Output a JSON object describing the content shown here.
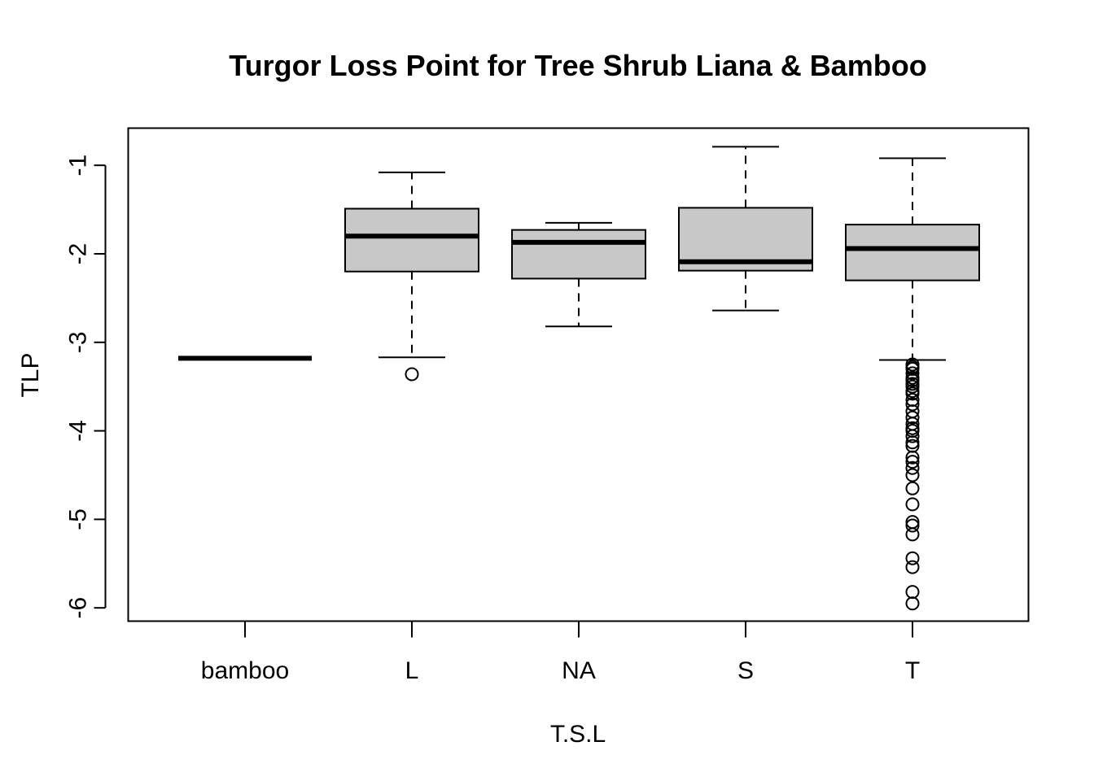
{
  "chart_data": {
    "type": "boxplot",
    "title": "Turgor Loss Point for Tree Shrub Liana & Bamboo",
    "xlabel": "T.S.L",
    "ylabel": "TLP",
    "ylim": [
      -6.15,
      -0.58
    ],
    "yticks": [
      -6,
      -5,
      -4,
      -3,
      -2,
      -1
    ],
    "yticklabels": [
      "-6",
      "-5",
      "-4",
      "-3",
      "-2",
      "-1"
    ],
    "categories": [
      "bamboo",
      "L",
      "NA",
      "S",
      "T"
    ],
    "box_fill": "#c8c8c8",
    "series": [
      {
        "category": "bamboo",
        "whisker_low": -3.18,
        "q1": -3.18,
        "median": -3.18,
        "q3": -3.18,
        "whisker_high": -3.18,
        "outliers": []
      },
      {
        "category": "L",
        "whisker_low": -3.17,
        "q1": -2.2,
        "median": -1.8,
        "q3": -1.49,
        "whisker_high": -1.08,
        "outliers": [
          -3.36
        ]
      },
      {
        "category": "NA",
        "whisker_low": -2.82,
        "q1": -2.28,
        "median": -1.87,
        "q3": -1.73,
        "whisker_high": -1.65,
        "outliers": []
      },
      {
        "category": "S",
        "whisker_low": -2.64,
        "q1": -2.19,
        "median": -2.09,
        "q3": -1.48,
        "whisker_high": -0.79,
        "outliers": []
      },
      {
        "category": "T",
        "whisker_low": -3.2,
        "q1": -2.3,
        "median": -1.94,
        "q3": -1.67,
        "whisker_high": -0.92,
        "outliers": [
          -3.25,
          -3.28,
          -3.3,
          -3.35,
          -3.4,
          -3.43,
          -3.47,
          -3.5,
          -3.55,
          -3.58,
          -3.65,
          -3.7,
          -3.78,
          -3.85,
          -3.92,
          -3.97,
          -4.0,
          -4.06,
          -4.13,
          -4.17,
          -4.3,
          -4.35,
          -4.42,
          -4.5,
          -4.65,
          -4.83,
          -5.03,
          -5.07,
          -5.17,
          -5.44,
          -5.54,
          -5.82,
          -5.95
        ]
      }
    ]
  }
}
